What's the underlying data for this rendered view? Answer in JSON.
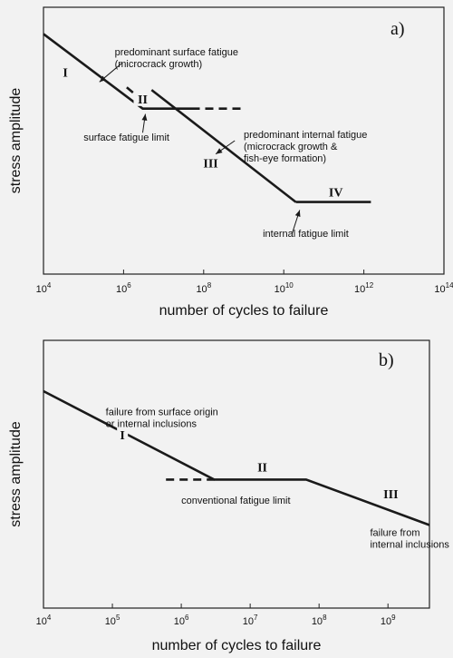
{
  "chart_data": [
    {
      "type": "line",
      "panel_label": "a)",
      "xlabel": "number of cycles to failure",
      "ylabel": "stress amplitude",
      "x_scale": "log",
      "x_ticks": [
        {
          "base": "10",
          "exp": "4"
        },
        {
          "base": "10",
          "exp": "6"
        },
        {
          "base": "10",
          "exp": "8"
        },
        {
          "base": "10",
          "exp": "10"
        },
        {
          "base": "10",
          "exp": "12"
        },
        {
          "base": "10",
          "exp": "14"
        }
      ],
      "xlim": [
        10000,
        100000000000000
      ],
      "ylim": [
        0,
        1
      ],
      "series": [
        {
          "style": "solid",
          "x": [
            10000,
            3000000,
            50000000
          ],
          "y": [
            0.9,
            0.62,
            0.62
          ]
        },
        {
          "style": "solid",
          "x": [
            5000000,
            20000000000
          ],
          "y": [
            0.69,
            0.27
          ]
        },
        {
          "style": "solid",
          "x": [
            20000000000,
            1500000000000
          ],
          "y": [
            0.27,
            0.27
          ]
        },
        {
          "style": "dashed",
          "x": [
            1200000,
            3000000
          ],
          "y": [
            0.7,
            0.65
          ]
        },
        {
          "style": "dashed",
          "x": [
            50000000,
            1000000000
          ],
          "y": [
            0.62,
            0.62
          ]
        }
      ],
      "region_labels": [
        {
          "text": "I",
          "x": 35000,
          "y": 0.74
        },
        {
          "text": "II",
          "x": 3000000,
          "y": 0.64
        },
        {
          "text": "III",
          "x": 150000000,
          "y": 0.4
        },
        {
          "text": "IV",
          "x": 200000000000,
          "y": 0.29
        }
      ],
      "annotations": [
        {
          "lines": [
            "predominant surface fatigue",
            "(microcrack growth)"
          ],
          "x": 600000,
          "y": 0.82
        },
        {
          "lines": [
            "surface fatigue limit"
          ],
          "x": 100000,
          "y": 0.5
        },
        {
          "lines": [
            "predominant internal fatigue",
            "(microcrack growth &",
            "fish-eye formation)"
          ],
          "x": 1000000000,
          "y": 0.51
        },
        {
          "lines": [
            "internal fatigue limit"
          ],
          "x": 3000000000,
          "y": 0.14
        }
      ],
      "arrows": [
        {
          "from": [
            900000,
            0.79
          ],
          "to": [
            250000,
            0.72
          ]
        },
        {
          "from": [
            3000000,
            0.53
          ],
          "to": [
            3500000,
            0.6
          ]
        },
        {
          "from": [
            600000000,
            0.5
          ],
          "to": [
            200000000,
            0.45
          ]
        },
        {
          "from": [
            16000000000,
            0.15
          ],
          "to": [
            25000000000,
            0.24
          ]
        }
      ]
    },
    {
      "type": "line",
      "panel_label": "b)",
      "xlabel": "number of cycles to failure",
      "ylabel": "stress amplitude",
      "x_scale": "log",
      "x_ticks": [
        {
          "base": "10",
          "exp": "4"
        },
        {
          "base": "10",
          "exp": "5"
        },
        {
          "base": "10",
          "exp": "6"
        },
        {
          "base": "10",
          "exp": "7"
        },
        {
          "base": "10",
          "exp": "8"
        },
        {
          "base": "10",
          "exp": "9"
        }
      ],
      "xlim": [
        10000,
        4000000000
      ],
      "ylim": [
        0,
        1
      ],
      "series": [
        {
          "style": "solid",
          "x": [
            10000,
            3000000,
            65000000,
            4000000000
          ],
          "y": [
            0.81,
            0.48,
            0.48,
            0.31
          ]
        },
        {
          "style": "dashed",
          "x": [
            600000,
            3000000
          ],
          "y": [
            0.48,
            0.48
          ]
        }
      ],
      "region_labels": [
        {
          "text": "I",
          "x": 140000,
          "y": 0.63
        },
        {
          "text": "II",
          "x": 15000000,
          "y": 0.51
        },
        {
          "text": "III",
          "x": 1100000000,
          "y": 0.41
        }
      ],
      "annotations": [
        {
          "lines": [
            "failure from surface origin",
            "or internal inclusions"
          ],
          "x": 80000,
          "y": 0.72
        },
        {
          "lines": [
            "conventional fatigue limit"
          ],
          "x": 1000000,
          "y": 0.39
        },
        {
          "lines": [
            "failure from",
            "internal inclusions"
          ],
          "x": 550000000,
          "y": 0.27
        }
      ],
      "arrows": []
    }
  ]
}
